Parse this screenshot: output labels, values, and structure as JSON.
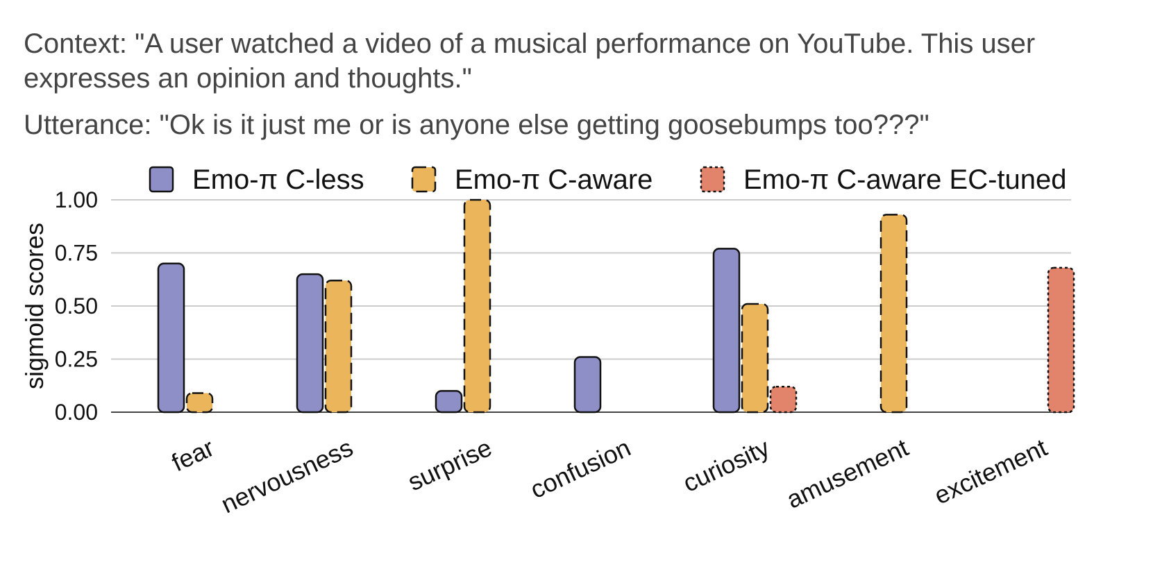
{
  "context_text": "Context: \"A user watched a video of a musical performance on YouTube. This user expresses an opinion and thoughts.\"",
  "utterance_text": "Utterance: \"Ok is it just me or is anyone else getting goosebumps too???\"",
  "chart_data": {
    "type": "bar",
    "title": "",
    "xlabel": "",
    "ylabel": "sigmoid scores",
    "ylim": [
      0,
      1.0
    ],
    "yticks": [
      0.0,
      0.25,
      0.5,
      0.75,
      1.0
    ],
    "ytick_labels": [
      "0.00",
      "0.25",
      "0.50",
      "0.75",
      "1.00"
    ],
    "grid": "horizontal",
    "legend_position": "top",
    "categories": [
      "fear",
      "nervousness",
      "surprise",
      "confusion",
      "curiosity",
      "amusement",
      "excitement"
    ],
    "series": [
      {
        "name": "Emo-π C-less",
        "color": "#8f8fc7",
        "border": "solid",
        "values": [
          0.7,
          0.65,
          0.1,
          0.26,
          0.77,
          0.0,
          0.0
        ]
      },
      {
        "name": "Emo-π C-aware",
        "color": "#ebb55c",
        "border": "dashed",
        "values": [
          0.09,
          0.62,
          1.0,
          0.0,
          0.51,
          0.93,
          0.0
        ]
      },
      {
        "name": "Emo-π C-aware EC-tuned",
        "color": "#e2846c",
        "border": "dotted",
        "values": [
          0.0,
          0.0,
          0.0,
          0.0,
          0.12,
          0.0,
          0.68
        ]
      }
    ]
  }
}
